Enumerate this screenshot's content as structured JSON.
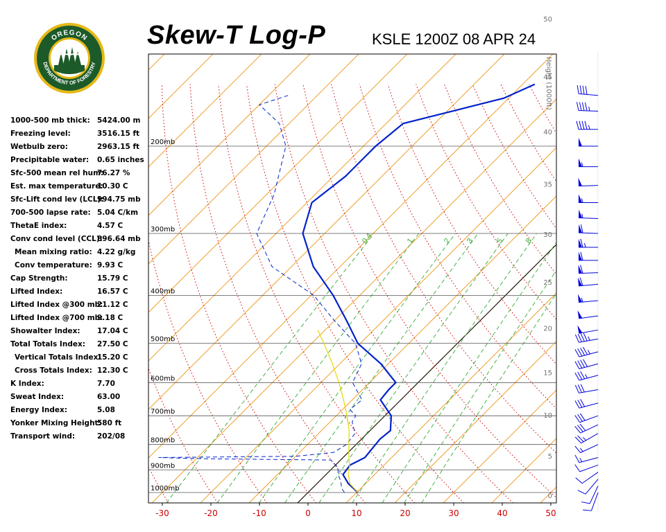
{
  "header": {
    "title": "Skew-T Log-P",
    "station_line": "KSLE 1200Z 08 APR 24"
  },
  "logo": {
    "top_text": "OREGON",
    "bottom_text": "DEPARTMENT OF FORESTRY",
    "ring_color": "#1c5a2a",
    "gold_color": "#e6b818"
  },
  "indices": [
    {
      "label": "1000-500 mb thick:",
      "value": "5424.00 m"
    },
    {
      "label": "Freezing level:",
      "value": "3516.15 ft"
    },
    {
      "label": "Wetbulb zero:",
      "value": "2963.15 ft"
    },
    {
      "label": "Precipitable water:",
      "value": "0.65 inches"
    },
    {
      "label": "Sfc-500 mean rel hum:",
      "value": "76.27 %"
    },
    {
      "label": "Est. max temperature:",
      "value": "10.30 C"
    },
    {
      "label": "Sfc-Lift cond lev (LCL):",
      "value": "994.75 mb"
    },
    {
      "label": "700-500 lapse rate:",
      "value": "5.04 C/km"
    },
    {
      "label": "ThetaE index:",
      "value": "4.57 C"
    },
    {
      "label": "Conv cond level (CCL):",
      "value": "896.64 mb"
    },
    {
      "label": "Mean mixing ratio:",
      "value": "4.22 g/kg",
      "indent": true
    },
    {
      "label": "Conv temperature:",
      "value": "9.93 C",
      "indent": true
    },
    {
      "label": "Cap Strength:",
      "value": "15.79 C"
    },
    {
      "label": "Lifted Index:",
      "value": "16.57 C"
    },
    {
      "label": "Lifted Index @300 mb:",
      "value": "21.12 C"
    },
    {
      "label": "Lifted Index @700 mb:",
      "value": "9.18 C"
    },
    {
      "label": "Showalter Index:",
      "value": "17.04 C"
    },
    {
      "label": "Total Totals Index:",
      "value": "27.50 C"
    },
    {
      "label": "Vertical Totals Index:",
      "value": "15.20 C",
      "indent": true
    },
    {
      "label": "Cross Totals Index:",
      "value": "12.30 C",
      "indent": true
    },
    {
      "label": "K Index:",
      "value": "7.70"
    },
    {
      "label": "Sweat Index:",
      "value": "63.00"
    },
    {
      "label": "Energy Index:",
      "value": "5.08"
    },
    {
      "label": "Yonker Mixing Height:",
      "value": "580 ft"
    },
    {
      "label": "Transport wind:",
      "value": "202/08"
    }
  ],
  "chart_data": {
    "type": "line",
    "title": "Skew-T Log-P",
    "subtitle": "KSLE 1200Z 08 APR 24",
    "x_axis": {
      "label": "",
      "ticks": [
        -30,
        -20,
        -10,
        0,
        10,
        20,
        30,
        40,
        50
      ],
      "range": [
        -33,
        50
      ],
      "unit": "C"
    },
    "pressure_levels": [
      {
        "p": 1000,
        "label": "1000mb"
      },
      {
        "p": 900,
        "label": "900mb"
      },
      {
        "p": 800,
        "label": "800mb"
      },
      {
        "p": 700,
        "label": "700mb"
      },
      {
        "p": 600,
        "label": "600mb"
      },
      {
        "p": 500,
        "label": "500mb"
      },
      {
        "p": 400,
        "label": "400mb"
      },
      {
        "p": 300,
        "label": "300mb"
      },
      {
        "p": 200,
        "label": "200mb"
      }
    ],
    "height_axis": {
      "label": "Height (1000ft)",
      "ticks": [
        0,
        5,
        10,
        15,
        20,
        25,
        30,
        35,
        40,
        45,
        50
      ]
    },
    "mixing_ratio_labels": [
      "0.4",
      "1",
      "2",
      "3",
      "5",
      "8"
    ],
    "series": [
      {
        "role": "temperature",
        "color": "#0022cc",
        "style": "solid",
        "points": [
          {
            "p": 1000,
            "t": 10.3
          },
          {
            "p": 960,
            "t": 6.5
          },
          {
            "p": 920,
            "t": 3.5
          },
          {
            "p": 880,
            "t": 3.0
          },
          {
            "p": 850,
            "t": 4.5
          },
          {
            "p": 800,
            "t": 4.0
          },
          {
            "p": 780,
            "t": 3.8
          },
          {
            "p": 750,
            "t": 4.2
          },
          {
            "p": 700,
            "t": 1.3
          },
          {
            "p": 650,
            "t": -4.2
          },
          {
            "p": 620,
            "t": -4.6
          },
          {
            "p": 600,
            "t": -4.6
          },
          {
            "p": 550,
            "t": -11.5
          },
          {
            "p": 500,
            "t": -20.5
          },
          {
            "p": 450,
            "t": -27.5
          },
          {
            "p": 400,
            "t": -35.5
          },
          {
            "p": 350,
            "t": -45.5
          },
          {
            "p": 300,
            "t": -54.5
          },
          {
            "p": 260,
            "t": -59.0
          },
          {
            "p": 230,
            "t": -57.5
          },
          {
            "p": 200,
            "t": -57.5
          },
          {
            "p": 180,
            "t": -56.5
          },
          {
            "p": 160,
            "t": -41.0
          },
          {
            "p": 150,
            "t": -37.5
          }
        ]
      },
      {
        "role": "dewpoint",
        "color": "#0022cc",
        "style": "dashed",
        "points": [
          {
            "p": 1000,
            "t": 7.5
          },
          {
            "p": 980,
            "t": 6.0
          },
          {
            "p": 950,
            "t": 4.5
          },
          {
            "p": 920,
            "t": 2.5
          },
          {
            "p": 890,
            "t": 1.0
          },
          {
            "p": 860,
            "t": -2.0
          },
          {
            "p": 855,
            "t": -28.0
          },
          {
            "p": 850,
            "t": -38.0
          },
          {
            "p": 845,
            "t": -10.0
          },
          {
            "p": 830,
            "t": -3.0
          },
          {
            "p": 800,
            "t": -2.0
          },
          {
            "p": 760,
            "t": -2.5
          },
          {
            "p": 720,
            "t": -5.5
          },
          {
            "p": 700,
            "t": -6.0
          },
          {
            "p": 680,
            "t": -8.5
          },
          {
            "p": 650,
            "t": -8.0
          },
          {
            "p": 600,
            "t": -13.5
          },
          {
            "p": 550,
            "t": -15.5
          },
          {
            "p": 500,
            "t": -21.0
          },
          {
            "p": 450,
            "t": -30.0
          },
          {
            "p": 400,
            "t": -39.5
          },
          {
            "p": 350,
            "t": -54.0
          },
          {
            "p": 300,
            "t": -64.0
          },
          {
            "p": 250,
            "t": -68.5
          },
          {
            "p": 200,
            "t": -76.0
          },
          {
            "p": 180,
            "t": -82.0
          },
          {
            "p": 165,
            "t": -90.0
          },
          {
            "p": 158,
            "t": -86.0
          }
        ]
      },
      {
        "role": "parcel",
        "color": "#e8d800",
        "style": "solid",
        "points": [
          {
            "p": 1000,
            "t": 10.3
          },
          {
            "p": 960,
            "t": 6.8
          },
          {
            "p": 920,
            "t": 4.6
          },
          {
            "p": 880,
            "t": 2.9
          },
          {
            "p": 850,
            "t": 1.2
          },
          {
            "p": 800,
            "t": -1.5
          },
          {
            "p": 750,
            "t": -4.3
          },
          {
            "p": 700,
            "t": -7.8
          },
          {
            "p": 650,
            "t": -11.8
          },
          {
            "p": 600,
            "t": -16.3
          },
          {
            "p": 550,
            "t": -21.5
          },
          {
            "p": 500,
            "t": -27.5
          },
          {
            "p": 470,
            "t": -31.5
          }
        ]
      }
    ],
    "wind_barbs": [
      {
        "p": 1000,
        "dir": 200,
        "spd": 10
      },
      {
        "p": 970,
        "dir": 205,
        "spd": 10
      },
      {
        "p": 940,
        "dir": 220,
        "spd": 10
      },
      {
        "p": 910,
        "dir": 235,
        "spd": 10
      },
      {
        "p": 880,
        "dir": 250,
        "spd": 10
      },
      {
        "p": 850,
        "dir": 255,
        "spd": 15
      },
      {
        "p": 800,
        "dir": 245,
        "spd": 15
      },
      {
        "p": 760,
        "dir": 240,
        "spd": 25
      },
      {
        "p": 730,
        "dir": 245,
        "spd": 30
      },
      {
        "p": 700,
        "dir": 250,
        "spd": 30
      },
      {
        "p": 660,
        "dir": 255,
        "spd": 30
      },
      {
        "p": 620,
        "dir": 260,
        "spd": 30
      },
      {
        "p": 580,
        "dir": 255,
        "spd": 35
      },
      {
        "p": 550,
        "dir": 255,
        "spd": 40
      },
      {
        "p": 520,
        "dir": 255,
        "spd": 45
      },
      {
        "p": 490,
        "dir": 260,
        "spd": 45
      },
      {
        "p": 470,
        "dir": 260,
        "spd": 50
      },
      {
        "p": 440,
        "dir": 262,
        "spd": 50
      },
      {
        "p": 410,
        "dir": 265,
        "spd": 55
      },
      {
        "p": 380,
        "dir": 265,
        "spd": 60
      },
      {
        "p": 360,
        "dir": 268,
        "spd": 60
      },
      {
        "p": 340,
        "dir": 270,
        "spd": 60
      },
      {
        "p": 320,
        "dir": 270,
        "spd": 65
      },
      {
        "p": 300,
        "dir": 272,
        "spd": 60
      },
      {
        "p": 280,
        "dir": 272,
        "spd": 55
      },
      {
        "p": 260,
        "dir": 270,
        "spd": 55
      },
      {
        "p": 240,
        "dir": 268,
        "spd": 50
      },
      {
        "p": 220,
        "dir": 270,
        "spd": 55
      },
      {
        "p": 200,
        "dir": 270,
        "spd": 50
      },
      {
        "p": 185,
        "dir": 270,
        "spd": 45
      },
      {
        "p": 170,
        "dir": 272,
        "spd": 45
      },
      {
        "p": 158,
        "dir": 275,
        "spd": 40
      }
    ],
    "colors": {
      "isotherm": "#f0a030",
      "dry_adiabat": "#e07000",
      "moist_adiabat": "#cc0000",
      "mixing_ratio": "#33aa33",
      "sounding": "#0022cc",
      "parcel": "#e8d800",
      "axis_ticks": "#cc0000",
      "band_green": "#e6f9e6",
      "band_yellow": "#fcfbdc"
    }
  }
}
